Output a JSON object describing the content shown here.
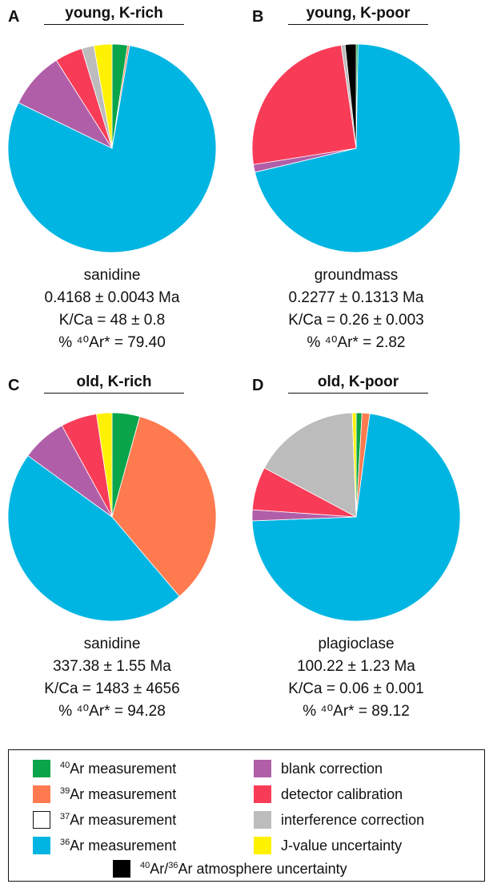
{
  "chart_data": [
    {
      "type": "pie",
      "panel": "A",
      "title": "young, K-rich",
      "mineral": "sanidine",
      "age": "0.4168 ± 0.0043 Ma",
      "kca": "K/Ca = 48 ±  0.8",
      "ar_radiogenic": "% ⁴⁰Ar* = 79.40",
      "slices": [
        {
          "component": "40ar",
          "value": 2.4
        },
        {
          "component": "39ar",
          "value": 0.3
        },
        {
          "component": "36ar",
          "value": 79.5
        },
        {
          "component": "blank",
          "value": 8.8
        },
        {
          "component": "detector",
          "value": 4.3
        },
        {
          "component": "interference",
          "value": 1.9
        },
        {
          "component": "jvalue",
          "value": 2.8
        }
      ]
    },
    {
      "type": "pie",
      "panel": "B",
      "title": "young, K-poor",
      "mineral": "groundmass",
      "age": "0.2277 ± 0.1313 Ma",
      "kca": "K/Ca = 0.26 ±  0.003",
      "ar_radiogenic": "% ⁴⁰Ar* = 2.82",
      "slices": [
        {
          "component": "40ar",
          "value": 0.3
        },
        {
          "component": "36ar",
          "value": 71.0
        },
        {
          "component": "blank",
          "value": 1.2
        },
        {
          "component": "detector",
          "value": 25.2
        },
        {
          "component": "interference",
          "value": 0.6
        },
        {
          "component": "atmosphere",
          "value": 1.7
        }
      ]
    },
    {
      "type": "pie",
      "panel": "C",
      "title": "old, K-rich",
      "mineral": "sanidine",
      "age": "337.38 ± 1.55 Ma",
      "kca": "K/Ca = 1483 ± 4656",
      "ar_radiogenic": "% ⁴⁰Ar* = 94.28",
      "slices": [
        {
          "component": "40ar",
          "value": 4.3
        },
        {
          "component": "39ar",
          "value": 34.5
        },
        {
          "component": "36ar",
          "value": 46.2
        },
        {
          "component": "blank",
          "value": 7.0
        },
        {
          "component": "detector",
          "value": 5.6
        },
        {
          "component": "jvalue",
          "value": 2.4
        }
      ]
    },
    {
      "type": "pie",
      "panel": "D",
      "title": "old, K-poor",
      "mineral": "plagioclase",
      "age": "100.22 ± 1.23 Ma",
      "kca": "K/Ca = 0.06 ±  0.001",
      "ar_radiogenic": "% ⁴⁰Ar* = 89.12",
      "slices": [
        {
          "component": "40ar",
          "value": 0.9
        },
        {
          "component": "39ar",
          "value": 1.2
        },
        {
          "component": "36ar",
          "value": 72.3
        },
        {
          "component": "blank",
          "value": 1.7
        },
        {
          "component": "detector",
          "value": 6.7
        },
        {
          "component": "interference",
          "value": 16.6
        },
        {
          "component": "jvalue",
          "value": 0.6
        }
      ]
    }
  ],
  "legend": [
    {
      "id": "40ar",
      "sup": "40",
      "label": "Ar measurement",
      "color": "#0aa54a"
    },
    {
      "id": "39ar",
      "sup": "39",
      "label": "Ar measurement",
      "color": "#ff7a4f"
    },
    {
      "id": "37ar",
      "sup": "37",
      "label": "Ar measurement",
      "color": "#ffffff"
    },
    {
      "id": "36ar",
      "sup": "36",
      "label": "Ar measurement",
      "color": "#00b5e2"
    },
    {
      "id": "blank",
      "sup": "",
      "label": "blank correction",
      "color": "#b15ea8"
    },
    {
      "id": "detector",
      "sup": "",
      "label": "detector calibration",
      "color": "#f83c58"
    },
    {
      "id": "interference",
      "sup": "",
      "label": "interference correction",
      "color": "#bcbcbc"
    },
    {
      "id": "jvalue",
      "sup": "",
      "label": "J-value uncertainty",
      "color": "#fff200"
    },
    {
      "id": "atmosphere",
      "sup": "40",
      "label": "Ar/",
      "sup2": "36",
      "label2": "Ar atmosphere uncertainty",
      "color": "#000000"
    }
  ]
}
